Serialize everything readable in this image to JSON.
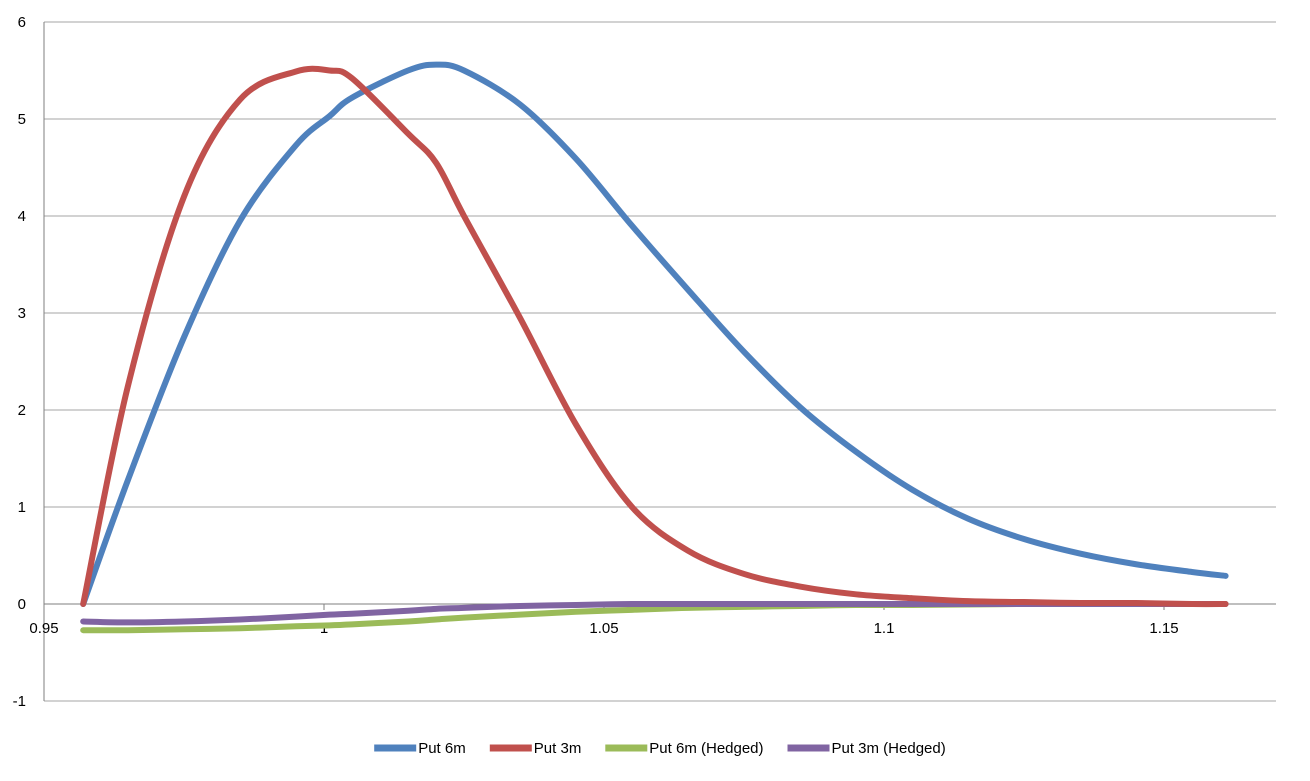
{
  "chart_data": {
    "type": "line",
    "title": "",
    "xlabel": "",
    "ylabel": "",
    "xlim": [
      0.95,
      1.17
    ],
    "ylim": [
      -1,
      6
    ],
    "grid": true,
    "legend_position": "bottom",
    "x_ticks": [
      "0.95",
      "1",
      "1.05",
      "1.1",
      "1.15"
    ],
    "y_ticks": [
      "-1",
      "0",
      "1",
      "2",
      "3",
      "4",
      "5",
      "6"
    ],
    "x": [
      0.957,
      0.965,
      0.975,
      0.985,
      0.995,
      1.001,
      1.005,
      1.015,
      1.02,
      1.025,
      1.035,
      1.045,
      1.055,
      1.065,
      1.075,
      1.085,
      1.095,
      1.105,
      1.115,
      1.125,
      1.135,
      1.145,
      1.155,
      1.161
    ],
    "series": [
      {
        "name": "Put 6m",
        "color": "#4f81bd",
        "values": [
          0.0,
          1.28,
          2.75,
          3.95,
          4.73,
          5.03,
          5.22,
          5.5,
          5.56,
          5.5,
          5.15,
          4.59,
          3.9,
          3.24,
          2.6,
          2.03,
          1.57,
          1.18,
          0.88,
          0.67,
          0.52,
          0.41,
          0.33,
          0.29
        ]
      },
      {
        "name": "Put 3m",
        "color": "#c0504d",
        "values": [
          0.0,
          2.25,
          4.2,
          5.2,
          5.49,
          5.5,
          5.42,
          4.85,
          4.55,
          4.0,
          2.95,
          1.85,
          1.0,
          0.55,
          0.31,
          0.18,
          0.1,
          0.06,
          0.03,
          0.02,
          0.01,
          0.01,
          0.0,
          0.0
        ]
      },
      {
        "name": "Put 6m (Hedged)",
        "color": "#9bbb59",
        "values": [
          -0.27,
          -0.27,
          -0.26,
          -0.25,
          -0.23,
          -0.22,
          -0.21,
          -0.18,
          -0.16,
          -0.14,
          -0.11,
          -0.08,
          -0.06,
          -0.04,
          -0.03,
          -0.02,
          -0.01,
          -0.01,
          -0.005,
          0.0,
          0.0,
          0.0,
          0.0,
          0.0
        ]
      },
      {
        "name": "Put 3m (Hedged)",
        "color": "#8064a2",
        "values": [
          -0.18,
          -0.19,
          -0.18,
          -0.16,
          -0.13,
          -0.11,
          -0.1,
          -0.07,
          -0.05,
          -0.04,
          -0.02,
          -0.01,
          0.0,
          0.0,
          0.0,
          0.0,
          0.0,
          0.0,
          0.0,
          0.0,
          0.0,
          0.0,
          0.0,
          0.0
        ]
      }
    ]
  }
}
